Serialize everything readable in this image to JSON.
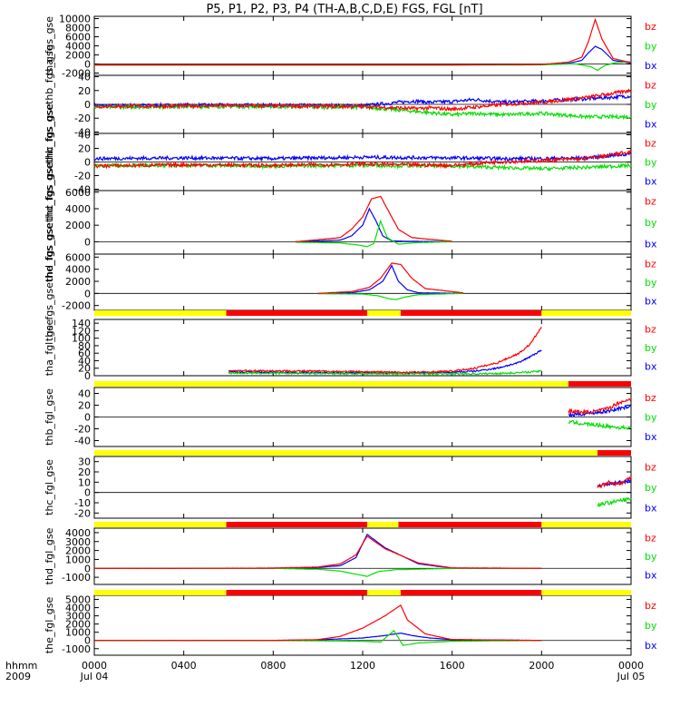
{
  "title": "P5, P1, P2, P3, P4 (TH-A,B,C,D,E) FGS, FGL [nT]",
  "colors": {
    "bx": "#0000ff",
    "by": "#00e000",
    "bz": "#ff0000",
    "bar_yellow": "#ffff00",
    "bar_red": "#ff0000"
  },
  "chart_data": {
    "type": "line",
    "x_unit": "hhmm",
    "xlim": [
      0,
      24
    ],
    "x_ticks": [
      0,
      4,
      8,
      12,
      16,
      20,
      24
    ],
    "x_tick_labels": [
      "0000",
      "0400",
      "0800",
      "1200",
      "1600",
      "2000",
      "0000"
    ],
    "x_date_labels": [
      {
        "x": 0,
        "text": "Jul 04"
      },
      {
        "x": 24,
        "text": "Jul 05"
      }
    ],
    "x_row_labels": [
      "hhmm",
      "2009"
    ],
    "panels": [
      {
        "ylabel": "tha_fgs_gse",
        "ylim": [
          -2500,
          10500
        ],
        "yticks": [
          -2000,
          0,
          2000,
          4000,
          6000,
          8000,
          10000
        ],
        "legend": [
          "bz",
          "by",
          "bx"
        ],
        "series": [
          {
            "name": "bx",
            "x": [
              0,
              16,
              20,
              21.2,
              21.8,
              22.1,
              22.4,
              22.7,
              23.2,
              24
            ],
            "y": [
              -200,
              -200,
              -150,
              150,
              800,
              2500,
              3900,
              3200,
              800,
              200
            ]
          },
          {
            "name": "by",
            "x": [
              0,
              16,
              20,
              21.5,
              22.2,
              22.5,
              22.8,
              23.3,
              24
            ],
            "y": [
              -250,
              -250,
              -200,
              50,
              -600,
              -1400,
              -400,
              300,
              500
            ]
          },
          {
            "name": "bz",
            "x": [
              0,
              16,
              20,
              21.2,
              21.8,
              22.1,
              22.4,
              22.7,
              23.2,
              24
            ],
            "y": [
              -200,
              -200,
              -100,
              400,
              1500,
              5000,
              9800,
              5500,
              1200,
              300
            ]
          }
        ]
      },
      {
        "ylabel": "thb_fgs_gsethb_fgs_gse",
        "ylim": [
          -42,
          42
        ],
        "yticks": [
          -40,
          -20,
          0,
          20,
          40
        ],
        "legend": [
          "bz",
          "by",
          "bx"
        ],
        "series": [
          {
            "name": "bx",
            "x": [
              0,
              6,
              12,
              14.3,
              15,
              16,
              17,
              18.3,
              20,
              22,
              24
            ],
            "y": [
              -2,
              -1,
              -2,
              5,
              3,
              4,
              7,
              3,
              5,
              8,
              12
            ]
          },
          {
            "name": "by",
            "x": [
              0,
              6,
              12,
              14.3,
              15,
              16,
              17,
              18.3,
              20,
              22,
              24
            ],
            "y": [
              -4,
              -3,
              -4,
              -10,
              -12,
              -15,
              -13,
              -15,
              -13,
              -18,
              -18
            ]
          },
          {
            "name": "bz",
            "x": [
              0,
              6,
              12,
              14.3,
              15,
              16,
              17,
              18.3,
              20,
              22,
              24
            ],
            "y": [
              -3,
              -2,
              -3,
              -6,
              -5,
              -7,
              -4,
              0,
              3,
              10,
              20
            ]
          }
        ]
      },
      {
        "ylabel": "thc_fgs_gsethc_fgs_gse",
        "ylim": [
          -42,
          42
        ],
        "yticks": [
          -40,
          -20,
          0,
          20,
          40
        ],
        "legend": [
          "bz",
          "by",
          "bx"
        ],
        "series": [
          {
            "name": "bx",
            "x": [
              0,
              4,
              8,
              12,
              16,
              18,
              20,
              22,
              24
            ],
            "y": [
              5,
              6,
              5,
              7,
              6,
              5,
              5,
              6,
              12
            ]
          },
          {
            "name": "by",
            "x": [
              0,
              4,
              8,
              12,
              16,
              18,
              20,
              22,
              24
            ],
            "y": [
              -5,
              -5,
              -6,
              -5,
              -6,
              -8,
              -10,
              -8,
              -5
            ]
          },
          {
            "name": "bz",
            "x": [
              0,
              4,
              8,
              12,
              16,
              18,
              20,
              22,
              24
            ],
            "y": [
              -6,
              -4,
              -5,
              -3,
              -5,
              0,
              2,
              5,
              15
            ]
          }
        ]
      },
      {
        "ylabel": "thd_fgs_gsethd_fgs_gse",
        "ylim": [
          -1500,
          6200
        ],
        "yticks": [
          0,
          2000,
          4000,
          6000
        ],
        "legend": [
          "bz",
          "by",
          "bx"
        ],
        "series": [
          {
            "name": "bx",
            "x": [
              9,
              11,
              11.5,
              12,
              12.3,
              12.6,
              12.9,
              13.3,
              14,
              16
            ],
            "y": [
              0,
              200,
              700,
              2000,
              4000,
              2500,
              700,
              100,
              50,
              0
            ]
          },
          {
            "name": "by",
            "x": [
              9,
              11,
              11.8,
              12.2,
              12.5,
              12.8,
              13.1,
              13.6,
              14.5,
              16
            ],
            "y": [
              -60,
              -150,
              -400,
              -600,
              -200,
              2500,
              500,
              -300,
              -100,
              0
            ]
          },
          {
            "name": "bz",
            "x": [
              9,
              11,
              11.5,
              12,
              12.4,
              12.8,
              13.2,
              13.6,
              14.2,
              16
            ],
            "y": [
              0,
              500,
              1500,
              3000,
              5200,
              5500,
              3500,
              1500,
              500,
              50
            ]
          }
        ]
      },
      {
        "ylabel": "the_fgs_gsethe_fgs_gse",
        "ylim": [
          -2800,
          6500
        ],
        "yticks": [
          -2000,
          0,
          2000,
          4000,
          6000
        ],
        "legend": [
          "bz",
          "by",
          "bx"
        ],
        "series": [
          {
            "name": "bx",
            "x": [
              10,
              11.5,
              12.3,
              12.9,
              13.3,
              13.6,
              14,
              14.5,
              16.5
            ],
            "y": [
              0,
              100,
              600,
              2000,
              4600,
              2000,
              600,
              100,
              0
            ]
          },
          {
            "name": "by",
            "x": [
              10,
              12,
              12.7,
              13.2,
              13.5,
              13.9,
              14.5,
              16.5
            ],
            "y": [
              -50,
              -100,
              -400,
              -900,
              -1000,
              -600,
              -200,
              0
            ]
          },
          {
            "name": "bz",
            "x": [
              10,
              11.5,
              12.3,
              12.8,
              13.3,
              13.7,
              14.2,
              14.8,
              16.5
            ],
            "y": [
              0,
              300,
              1000,
              2500,
              5000,
              4800,
              2500,
              800,
              100
            ]
          }
        ]
      },
      {
        "ylabel": "tha_fgl_gse",
        "ylim": [
          0,
          150
        ],
        "yticks": [
          0,
          20,
          40,
          60,
          80,
          100,
          120,
          140
        ],
        "legend": [
          "bz",
          "by",
          "bx"
        ],
        "series": [
          {
            "name": "bx",
            "x": [
              6,
              10,
              14,
              16,
              17,
              18,
              19,
              20
            ],
            "y": [
              10,
              8,
              7,
              9,
              12,
              20,
              35,
              68
            ]
          },
          {
            "name": "by",
            "x": [
              6,
              10,
              14,
              16,
              17,
              18,
              19,
              20
            ],
            "y": [
              7,
              6,
              5,
              5,
              5,
              6,
              8,
              12
            ]
          },
          {
            "name": "bz",
            "x": [
              6,
              10,
              14,
              15,
              16,
              17,
              18,
              19,
              19.5,
              20
            ],
            "y": [
              14,
              12,
              9,
              10,
              12,
              20,
              34,
              60,
              85,
              130
            ]
          }
        ]
      },
      {
        "ylabel": "thb_fgl_gse",
        "ylim": [
          -50,
          50
        ],
        "yticks": [
          -40,
          -20,
          0,
          20,
          40
        ],
        "legend": [
          "bz",
          "by",
          "bx"
        ],
        "series": [
          {
            "name": "bx",
            "x": [
              21.2,
              22,
              22.5,
              23,
              23.5,
              24
            ],
            "y": [
              3,
              6,
              8,
              10,
              15,
              18
            ]
          },
          {
            "name": "by",
            "x": [
              21.2,
              22,
              22.5,
              23,
              23.5,
              24
            ],
            "y": [
              -8,
              -12,
              -14,
              -16,
              -18,
              -18
            ]
          },
          {
            "name": "bz",
            "x": [
              21.2,
              22,
              22.5,
              23,
              23.5,
              24
            ],
            "y": [
              10,
              8,
              10,
              15,
              25,
              30
            ]
          }
        ]
      },
      {
        "ylabel": "thc_fgl_gse",
        "ylim": [
          -25,
          35
        ],
        "yticks": [
          -20,
          -10,
          0,
          10,
          20,
          30
        ],
        "legend": [
          "bz",
          "by",
          "bx"
        ],
        "series": [
          {
            "name": "bx",
            "x": [
              22.5,
              23,
              23.5,
              24
            ],
            "y": [
              7,
              8,
              10,
              12
            ]
          },
          {
            "name": "by",
            "x": [
              22.5,
              23,
              23.5,
              24
            ],
            "y": [
              -12,
              -10,
              -8,
              -6
            ]
          },
          {
            "name": "bz",
            "x": [
              22.5,
              23,
              23.5,
              24
            ],
            "y": [
              5,
              10,
              8,
              15
            ]
          }
        ]
      },
      {
        "ylabel": "thd_fgl_gse",
        "ylim": [
          -1800,
          4500
        ],
        "yticks": [
          -1000,
          0,
          1000,
          2000,
          3000,
          4000
        ],
        "legend": [
          "bz",
          "by",
          "bx"
        ],
        "series": [
          {
            "name": "bx",
            "x": [
              0,
              4,
              8,
              10,
              11,
              11.7,
              12.2,
              13,
              14.5,
              16,
              20
            ],
            "y": [
              0,
              0,
              20,
              100,
              300,
              1200,
              3800,
              2300,
              500,
              30,
              0
            ]
          },
          {
            "name": "by",
            "x": [
              0,
              8,
              10,
              11,
              11.8,
              12.2,
              12.7,
              13.5,
              16,
              20
            ],
            "y": [
              0,
              0,
              -100,
              -300,
              -700,
              -900,
              -350,
              -150,
              0,
              0
            ]
          },
          {
            "name": "bz",
            "x": [
              0,
              4,
              8,
              10,
              11,
              11.7,
              12.2,
              13,
              14.5,
              16,
              20
            ],
            "y": [
              0,
              0,
              30,
              150,
              500,
              1500,
              3600,
              2200,
              600,
              50,
              0
            ]
          }
        ]
      },
      {
        "ylabel": "the_fgl_gse",
        "ylim": [
          -1800,
          5500
        ],
        "yticks": [
          -1000,
          0,
          1000,
          2000,
          3000,
          4000,
          5000
        ],
        "legend": [
          "bz",
          "by",
          "bx"
        ],
        "series": [
          {
            "name": "bx",
            "x": [
              0,
              8,
              10,
              12,
              13,
              13.7,
              14.2,
              15,
              16,
              20
            ],
            "y": [
              0,
              0,
              80,
              300,
              600,
              900,
              600,
              300,
              100,
              0
            ]
          },
          {
            "name": "by",
            "x": [
              0,
              8,
              10,
              12,
              12.8,
              13.4,
              13.8,
              14.5,
              16,
              20
            ],
            "y": [
              0,
              0,
              -50,
              -100,
              -200,
              1200,
              -600,
              -300,
              -100,
              0
            ]
          },
          {
            "name": "bz",
            "x": [
              0,
              8,
              10,
              11,
              12,
              13,
              13.7,
              14,
              14.8,
              16,
              20
            ],
            "y": [
              0,
              0,
              100,
              500,
              1500,
              3000,
              4300,
              2500,
              800,
              100,
              0
            ]
          }
        ]
      }
    ],
    "mode_bars": [
      {
        "segments": [
          {
            "from": 0,
            "to": 5.9,
            "color": "yellow"
          },
          {
            "from": 5.9,
            "to": 12.2,
            "color": "red"
          },
          {
            "from": 12.2,
            "to": 13.7,
            "color": "yellow"
          },
          {
            "from": 13.7,
            "to": 20,
            "color": "red"
          },
          {
            "from": 20,
            "to": 24,
            "color": "yellow"
          }
        ]
      },
      {
        "segments": [
          {
            "from": 0,
            "to": 21.2,
            "color": "yellow"
          },
          {
            "from": 21.2,
            "to": 24,
            "color": "red"
          }
        ]
      },
      {
        "segments": [
          {
            "from": 0,
            "to": 22.5,
            "color": "yellow"
          },
          {
            "from": 22.5,
            "to": 24,
            "color": "red"
          }
        ]
      },
      {
        "segments": [
          {
            "from": 0,
            "to": 5.9,
            "color": "yellow"
          },
          {
            "from": 5.9,
            "to": 12.2,
            "color": "red"
          },
          {
            "from": 12.2,
            "to": 13.6,
            "color": "yellow"
          },
          {
            "from": 13.6,
            "to": 20,
            "color": "red"
          },
          {
            "from": 20,
            "to": 24,
            "color": "yellow"
          }
        ]
      },
      {
        "segments": [
          {
            "from": 0,
            "to": 5.9,
            "color": "yellow"
          },
          {
            "from": 5.9,
            "to": 12.2,
            "color": "red"
          },
          {
            "from": 12.2,
            "to": 13.7,
            "color": "yellow"
          },
          {
            "from": 13.7,
            "to": 20,
            "color": "red"
          },
          {
            "from": 20,
            "to": 24,
            "color": "yellow"
          }
        ]
      }
    ]
  }
}
